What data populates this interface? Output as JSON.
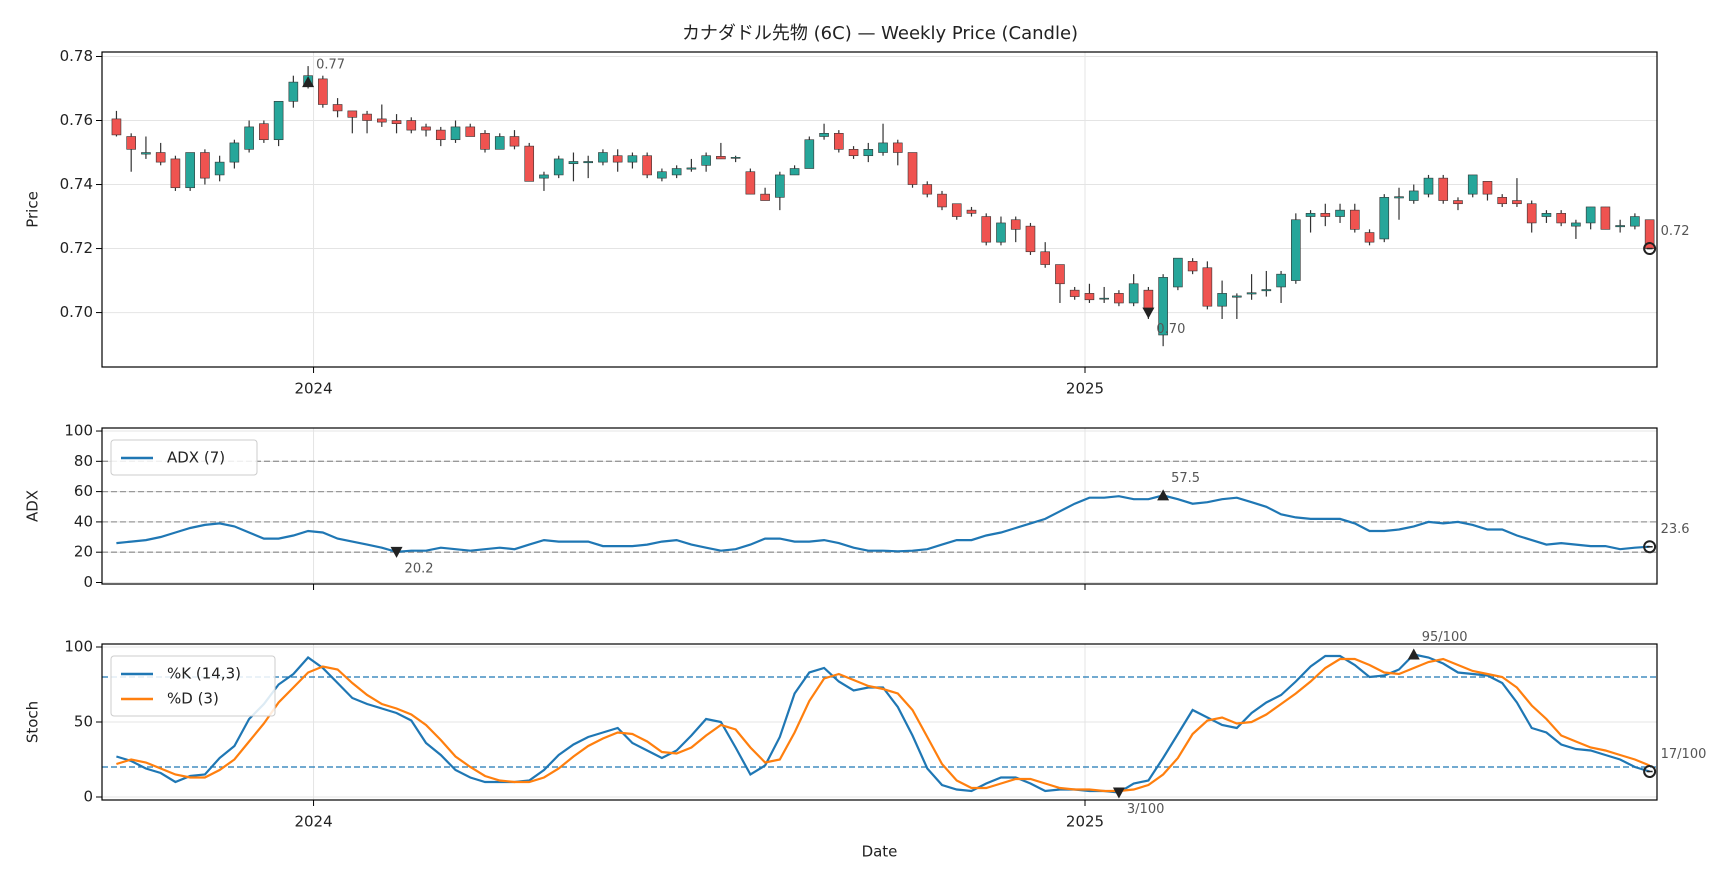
{
  "chart_data": [
    {
      "type": "candlestick",
      "title": "カナダドル先物 (6C) — Weekly Price (Candle)",
      "ylabel": "Price",
      "up_color": "#26a69a",
      "down_color": "#ef5350",
      "grid": true,
      "xlim": [
        -0.98,
        104.5
      ],
      "xticks": [
        {
          "value": 13.37,
          "label": "2024"
        },
        {
          "value": 65.7,
          "label": "2025"
        }
      ],
      "ylim": [
        0.683,
        0.7814
      ],
      "yticks": [
        {
          "value": 0.7,
          "label": "0.70"
        },
        0.72,
        0.74,
        0.76,
        0.78
      ],
      "open": [
        0.7605,
        0.755,
        0.7495,
        0.75,
        0.748,
        0.739,
        0.75,
        0.743,
        0.747,
        0.751,
        0.759,
        0.754,
        0.766,
        0.771,
        0.773,
        0.765,
        0.763,
        0.762,
        0.7605,
        0.76,
        0.76,
        0.758,
        0.757,
        0.754,
        0.758,
        0.756,
        0.751,
        0.755,
        0.752,
        0.742,
        0.743,
        0.7465,
        0.7468,
        0.747,
        0.749,
        0.747,
        0.749,
        0.742,
        0.743,
        0.7448,
        0.746,
        0.7488,
        0.7482,
        0.744,
        0.737,
        0.736,
        0.743,
        0.745,
        0.755,
        0.756,
        0.751,
        0.749,
        0.75,
        0.753,
        0.75,
        0.74,
        0.737,
        0.734,
        0.732,
        0.73,
        0.722,
        0.729,
        0.727,
        0.719,
        0.715,
        0.707,
        0.706,
        0.7042,
        0.706,
        0.703,
        0.707,
        0.693,
        0.708,
        0.716,
        0.714,
        0.702,
        0.7048,
        0.7058,
        0.7068,
        0.708,
        0.71,
        0.73,
        0.731,
        0.73,
        0.732,
        0.725,
        0.723,
        0.7358,
        0.735,
        0.737,
        0.742,
        0.735,
        0.737,
        0.741,
        0.736,
        0.735,
        0.734,
        0.73,
        0.731,
        0.727,
        0.728,
        0.733,
        0.7268,
        0.727,
        0.729
      ],
      "high": [
        0.763,
        0.756,
        0.755,
        0.753,
        0.749,
        0.75,
        0.751,
        0.749,
        0.754,
        0.76,
        0.76,
        0.766,
        0.774,
        0.777,
        0.774,
        0.767,
        0.763,
        0.763,
        0.765,
        0.762,
        0.761,
        0.759,
        0.758,
        0.76,
        0.759,
        0.757,
        0.756,
        0.757,
        0.753,
        0.744,
        0.749,
        0.75,
        0.749,
        0.751,
        0.751,
        0.75,
        0.75,
        0.745,
        0.746,
        0.748,
        0.75,
        0.753,
        0.749,
        0.745,
        0.739,
        0.744,
        0.746,
        0.755,
        0.759,
        0.757,
        0.752,
        0.753,
        0.759,
        0.754,
        0.75,
        0.741,
        0.738,
        0.734,
        0.733,
        0.731,
        0.73,
        0.73,
        0.728,
        0.722,
        0.715,
        0.708,
        0.709,
        0.708,
        0.707,
        0.712,
        0.708,
        0.712,
        0.717,
        0.717,
        0.716,
        0.71,
        0.706,
        0.712,
        0.713,
        0.713,
        0.731,
        0.732,
        0.734,
        0.734,
        0.734,
        0.726,
        0.737,
        0.739,
        0.74,
        0.743,
        0.743,
        0.736,
        0.743,
        0.741,
        0.737,
        0.742,
        0.735,
        0.732,
        0.732,
        0.729,
        0.733,
        0.733,
        0.729,
        0.731,
        0.729
      ],
      "low": [
        0.755,
        0.744,
        0.748,
        0.746,
        0.738,
        0.738,
        0.74,
        0.741,
        0.745,
        0.75,
        0.753,
        0.752,
        0.764,
        0.77,
        0.764,
        0.761,
        0.756,
        0.756,
        0.758,
        0.756,
        0.756,
        0.755,
        0.752,
        0.753,
        0.755,
        0.75,
        0.751,
        0.751,
        0.741,
        0.738,
        0.742,
        0.741,
        0.742,
        0.746,
        0.744,
        0.745,
        0.742,
        0.741,
        0.742,
        0.744,
        0.744,
        0.748,
        0.747,
        0.737,
        0.735,
        0.732,
        0.743,
        0.745,
        0.754,
        0.75,
        0.748,
        0.747,
        0.749,
        0.746,
        0.739,
        0.736,
        0.732,
        0.729,
        0.73,
        0.721,
        0.721,
        0.722,
        0.718,
        0.714,
        0.703,
        0.704,
        0.703,
        0.703,
        0.702,
        0.702,
        0.698,
        0.6895,
        0.707,
        0.712,
        0.701,
        0.698,
        0.698,
        0.704,
        0.705,
        0.703,
        0.709,
        0.725,
        0.727,
        0.728,
        0.725,
        0.721,
        0.722,
        0.729,
        0.734,
        0.736,
        0.734,
        0.732,
        0.736,
        0.735,
        0.733,
        0.733,
        0.725,
        0.728,
        0.727,
        0.723,
        0.726,
        0.726,
        0.725,
        0.726,
        0.72
      ],
      "close": [
        0.7555,
        0.751,
        0.75,
        0.747,
        0.739,
        0.75,
        0.742,
        0.747,
        0.753,
        0.758,
        0.754,
        0.766,
        0.772,
        0.774,
        0.765,
        0.763,
        0.761,
        0.76,
        0.7595,
        0.759,
        0.757,
        0.757,
        0.754,
        0.758,
        0.755,
        0.751,
        0.755,
        0.752,
        0.741,
        0.743,
        0.748,
        0.7472,
        0.7472,
        0.75,
        0.747,
        0.749,
        0.743,
        0.744,
        0.745,
        0.7452,
        0.749,
        0.748,
        0.7485,
        0.737,
        0.735,
        0.743,
        0.745,
        0.754,
        0.756,
        0.751,
        0.749,
        0.751,
        0.753,
        0.75,
        0.74,
        0.737,
        0.733,
        0.73,
        0.731,
        0.722,
        0.728,
        0.726,
        0.719,
        0.715,
        0.709,
        0.705,
        0.704,
        0.7045,
        0.703,
        0.709,
        0.701,
        0.711,
        0.717,
        0.713,
        0.702,
        0.706,
        0.7052,
        0.7062,
        0.7072,
        0.712,
        0.729,
        0.731,
        0.73,
        0.732,
        0.726,
        0.722,
        0.736,
        0.7362,
        0.738,
        0.742,
        0.735,
        0.734,
        0.743,
        0.737,
        0.734,
        0.734,
        0.728,
        0.731,
        0.728,
        0.728,
        0.733,
        0.726,
        0.7272,
        0.73,
        0.72
      ],
      "annotations": [
        {
          "x": 13,
          "value": 0.772,
          "label": "0.77",
          "marker": "^"
        },
        {
          "x": 70,
          "value": 0.7,
          "label": "0.70",
          "marker": "v"
        },
        {
          "x": 104,
          "value": 0.72,
          "marker": "o"
        }
      ]
    },
    {
      "type": "line",
      "ylabel": "ADX",
      "grid": true,
      "legend": "upper left",
      "xlim": [
        -0.98,
        104.5
      ],
      "xticks": [
        13.37,
        65.7
      ],
      "ylim": [
        -1,
        102
      ],
      "yticks": [
        0,
        20,
        40,
        60,
        80,
        100
      ],
      "hlines": [
        20,
        40,
        60,
        80
      ],
      "hline_color": "#999999",
      "series": [
        {
          "name": "ADX (7)",
          "color": "#1f77b4",
          "values": [
            26,
            27,
            28,
            30,
            33,
            36,
            38,
            39,
            37,
            33,
            29,
            29,
            31,
            34,
            33,
            29,
            27,
            25,
            23,
            20.2,
            21,
            21,
            23,
            22,
            21,
            22,
            23,
            22,
            25,
            28,
            27,
            27,
            27,
            24,
            24,
            24,
            25,
            27,
            28,
            25,
            23,
            21,
            22,
            25,
            29,
            29,
            27,
            27,
            28,
            26,
            23,
            21,
            21,
            20.6,
            21,
            22,
            25,
            28,
            28,
            31,
            33,
            36,
            39,
            42,
            47,
            52,
            56,
            56,
            57,
            55,
            55,
            57.5,
            55,
            52,
            53,
            55,
            56,
            53,
            50,
            45,
            43,
            42,
            42,
            42,
            39,
            34,
            34,
            35,
            37,
            40,
            39,
            40,
            38,
            35,
            35,
            31,
            28,
            25,
            26,
            25,
            24,
            24,
            22,
            23,
            23.6
          ]
        }
      ],
      "annotations": [
        {
          "x": 71,
          "value": 57.5,
          "marker": "^"
        },
        {
          "x": 19,
          "value": 20.2,
          "marker": "v"
        },
        {
          "x": 104,
          "value": 23.6,
          "marker": "o"
        }
      ]
    },
    {
      "type": "line",
      "ylabel": "Stoch",
      "xlabel": "Date",
      "grid": true,
      "legend": "upper left",
      "xlim": [
        -0.98,
        104.5
      ],
      "xticks": [
        {
          "value": 13.37,
          "label": "2024"
        },
        {
          "value": 65.7,
          "label": "2025"
        }
      ],
      "ylim": [
        -2,
        102
      ],
      "yticks": [
        0,
        50,
        100
      ],
      "hlines": [
        20,
        80
      ],
      "hline_color": "#1f77b4",
      "series": [
        {
          "name": "%K (14,3)",
          "color": "#1f77b4",
          "values": [
            27,
            24,
            19,
            16,
            10,
            14,
            15,
            26,
            34,
            52,
            62,
            75,
            82,
            93,
            86,
            76,
            66,
            62,
            59,
            56,
            51,
            36,
            28,
            18,
            13,
            10,
            10,
            10,
            11,
            18,
            28,
            35,
            40,
            43,
            46,
            36,
            31,
            26,
            31,
            41,
            52,
            50,
            33,
            15,
            21,
            40,
            69,
            83,
            86,
            77,
            71,
            73,
            73,
            60,
            41,
            19,
            8,
            5,
            4,
            9,
            13,
            13,
            9,
            4,
            5,
            5,
            4,
            4,
            3,
            9,
            11,
            26,
            42,
            58,
            53,
            48,
            46,
            56,
            63,
            68,
            77,
            87,
            94,
            94,
            88,
            80,
            81,
            85,
            95,
            93,
            89,
            83,
            82,
            81,
            76,
            63,
            46,
            43,
            35,
            32,
            31,
            28,
            25,
            20,
            17
          ]
        },
        {
          "name": "%D (3)",
          "color": "#ff7f0e",
          "values": [
            22,
            25,
            23,
            19,
            15,
            13,
            13,
            18,
            25,
            37,
            49,
            63,
            73,
            83,
            87,
            85,
            76,
            68,
            62,
            59,
            55,
            48,
            38,
            27,
            20,
            14,
            11,
            10,
            10,
            13,
            19,
            27,
            34,
            39,
            43,
            42,
            37,
            30,
            29,
            33,
            41,
            48,
            45,
            33,
            23,
            25,
            43,
            64,
            79,
            82,
            78,
            74,
            72,
            69,
            58,
            40,
            22,
            11,
            6,
            6,
            9,
            12,
            12,
            9,
            6,
            5,
            5,
            4,
            4,
            5,
            8,
            15,
            26,
            42,
            51,
            53,
            49,
            50,
            55,
            62,
            69,
            77,
            86,
            92,
            92,
            88,
            83,
            82,
            86,
            90,
            92,
            88,
            84,
            82,
            80,
            73,
            61,
            52,
            41,
            37,
            33,
            31,
            28,
            25,
            21
          ]
        }
      ],
      "annotations": [
        {
          "x": 88,
          "value": 95,
          "label": "95/100",
          "marker": "^"
        },
        {
          "x": 68,
          "value": 3,
          "label": "3/100",
          "marker": "v"
        },
        {
          "x": 104,
          "value": 17,
          "label": "17/100",
          "marker": "o"
        }
      ]
    }
  ]
}
